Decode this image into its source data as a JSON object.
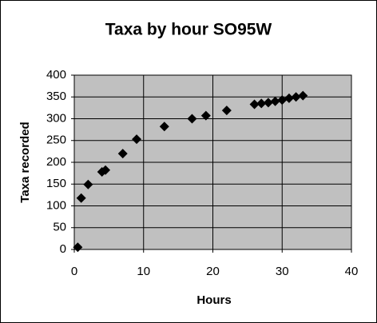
{
  "chart_data": {
    "type": "scatter",
    "title": "Taxa by hour SO95W",
    "x_label": "Hours",
    "y_label": "Taxa recorded",
    "x": [
      0.5,
      1,
      2,
      4,
      4.5,
      7,
      9,
      13,
      17,
      19,
      22,
      26,
      27,
      28,
      29,
      30,
      31,
      32,
      33
    ],
    "values": [
      5,
      118,
      149,
      178,
      182,
      220,
      253,
      282,
      300,
      307,
      319,
      333,
      335,
      337,
      340,
      343,
      347,
      350,
      353
    ],
    "color": "#000000",
    "xlim": [
      0,
      40
    ],
    "ylim": [
      0,
      400
    ],
    "xticks": [
      0,
      10,
      20,
      30,
      40
    ],
    "yticks": [
      0,
      50,
      100,
      150,
      200,
      250,
      300,
      350,
      400
    ],
    "grid": true,
    "plot_background": "#c0c0c0"
  }
}
